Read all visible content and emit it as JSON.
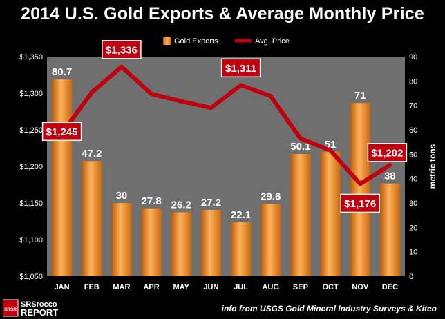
{
  "title": "2014 U.S. Gold Exports & Average Monthly Price",
  "source_note": "info from USGS Gold Mineral Industry Surveys & Kitco",
  "logo": {
    "top_text": "SRSrocco",
    "bottom_text": "REPORT",
    "badge_text": "SRSR"
  },
  "colors": {
    "background": "#000000",
    "plot_bg": "#6f6f6f",
    "bar": "#f08a24",
    "line": "#c0000f",
    "label_box": "#c0000f"
  },
  "chart_data": {
    "type": "bar",
    "categories": [
      "JAN",
      "FEB",
      "MAR",
      "APR",
      "MAY",
      "JUN",
      "JUL",
      "AUG",
      "SEP",
      "OCT",
      "NOV",
      "DEC"
    ],
    "series": [
      {
        "name": "Gold Exports",
        "type": "bar",
        "axis": "right",
        "values": [
          80.7,
          47.2,
          30,
          27.8,
          26.2,
          27.2,
          22.1,
          29.6,
          50.1,
          51,
          71,
          38
        ],
        "labels": [
          "80.7",
          "47.2",
          "30",
          "27.8",
          "26.2",
          "27.2",
          "22.1",
          "29.6",
          "50.1",
          "51",
          "71",
          "38"
        ]
      },
      {
        "name": "Avg. Price",
        "type": "line",
        "axis": "left",
        "values": [
          1245,
          1301,
          1336,
          1299,
          1289,
          1280,
          1311,
          1296,
          1238,
          1222,
          1176,
          1202
        ]
      }
    ],
    "price_callouts": [
      {
        "category": "JAN",
        "label": "$1,245"
      },
      {
        "category": "MAR",
        "label": "$1,336"
      },
      {
        "category": "JUL",
        "label": "$1,311"
      },
      {
        "category": "NOV",
        "label": "$1,176"
      },
      {
        "category": "DEC",
        "label": "$1,202"
      }
    ],
    "y_left": {
      "min": 1050,
      "max": 1350,
      "step": 50,
      "tick_labels": [
        "$1,050",
        "$1,100",
        "$1,150",
        "$1,200",
        "$1,250",
        "$1,300",
        "$1,350"
      ]
    },
    "y_right": {
      "label": "metric tons",
      "min": 0,
      "max": 90,
      "step": 10,
      "tick_labels": [
        "0",
        "10",
        "20",
        "30",
        "40",
        "50",
        "60",
        "70",
        "80",
        "90"
      ]
    },
    "legend": {
      "placement": "top-center"
    },
    "grid": false
  }
}
